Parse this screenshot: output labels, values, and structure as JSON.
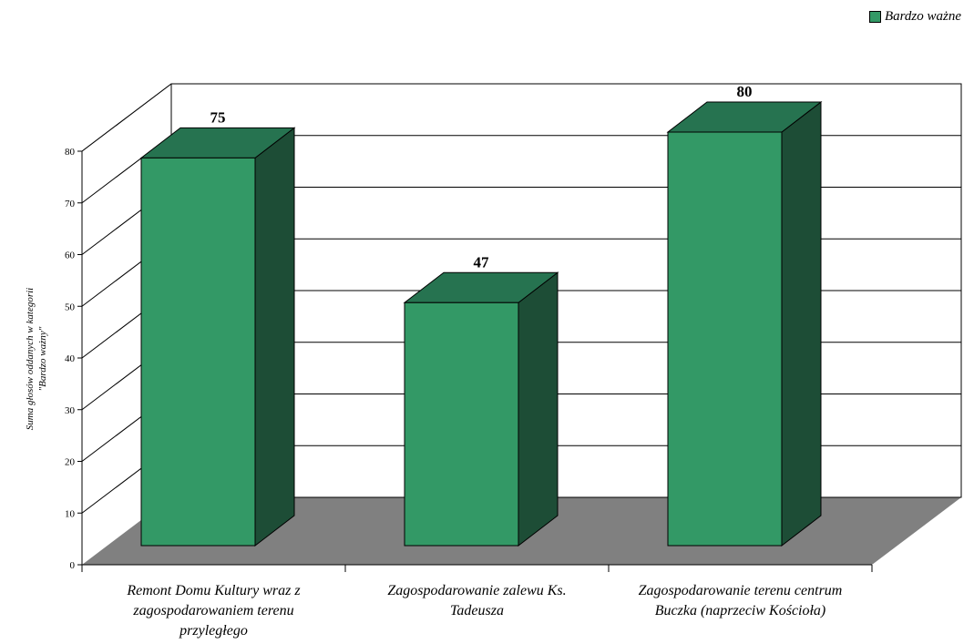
{
  "legend": {
    "label": "Bardzo ważne",
    "color": "#339966"
  },
  "chart_data": {
    "type": "bar",
    "three_d": true,
    "title": "",
    "categories": [
      [
        "Remont Domu Kultury wraz z",
        "zagospodarowaniem terenu",
        "przyległego"
      ],
      [
        "Zagospodarowanie zalewu Ks.",
        "Tadeusza"
      ],
      [
        "Zagospodarowanie terenu centrum",
        "Buczka (naprzeciw Kościoła)"
      ]
    ],
    "series": [
      {
        "name": "Bardzo ważne",
        "values": [
          75,
          47,
          80
        ]
      }
    ],
    "data_labels": [
      "75",
      "47",
      "80"
    ],
    "ylabel": [
      "Suma głosów oddanych w kategorii",
      "\"Bardzo ważny\""
    ],
    "ylim": [
      0,
      80
    ],
    "yticks": [
      "0",
      "10",
      "20",
      "30",
      "40",
      "50",
      "60",
      "70",
      "80"
    ],
    "grid": true,
    "legend_position": "top-right",
    "colors": {
      "bar_front": "#339966",
      "bar_top": "#267350",
      "bar_side": "#1d4d36",
      "floor": "#808080",
      "axis": "#000000"
    }
  }
}
